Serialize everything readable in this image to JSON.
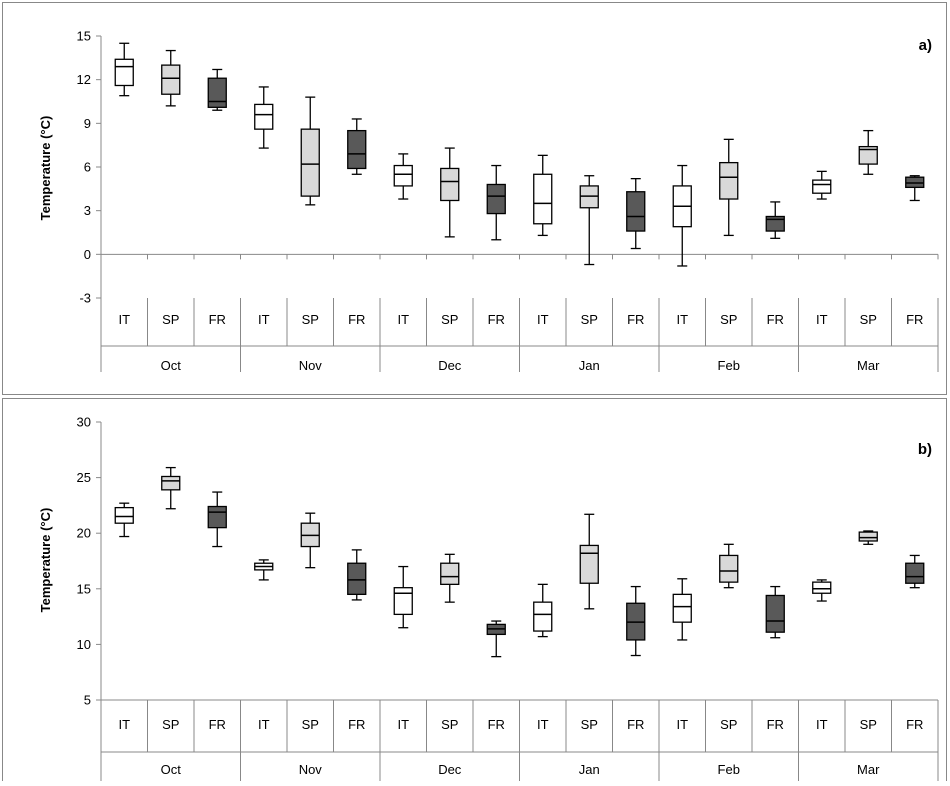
{
  "colors": {
    "IT": "#ffffff",
    "SP": "#d9d9d9",
    "FR": "#595959",
    "line": "#000000",
    "frame": "#888888",
    "axis": "#888888"
  },
  "chart_data": [
    {
      "type": "boxplot",
      "panel_label": "a)",
      "ylabel": "Temperature (°C)",
      "ylim": [
        -3,
        15
      ],
      "yticks": [
        "15",
        "12",
        "9",
        "6",
        "3",
        "0",
        "-3"
      ],
      "groups": [
        "Oct",
        "Nov",
        "Dec",
        "Jan",
        "Feb",
        "Mar"
      ],
      "subcategories": [
        "IT",
        "SP",
        "FR"
      ],
      "boxes": [
        {
          "group": "Oct",
          "sub": "IT",
          "min": 10.9,
          "q1": 11.6,
          "median": 12.9,
          "q3": 13.4,
          "max": 14.5
        },
        {
          "group": "Oct",
          "sub": "SP",
          "min": 10.2,
          "q1": 11.0,
          "median": 12.1,
          "q3": 13.0,
          "max": 14.0
        },
        {
          "group": "Oct",
          "sub": "FR",
          "min": 9.9,
          "q1": 10.1,
          "median": 10.5,
          "q3": 12.1,
          "max": 12.7
        },
        {
          "group": "Nov",
          "sub": "IT",
          "min": 7.3,
          "q1": 8.6,
          "median": 9.6,
          "q3": 10.3,
          "max": 11.5
        },
        {
          "group": "Nov",
          "sub": "SP",
          "min": 3.4,
          "q1": 4.0,
          "median": 6.2,
          "q3": 8.6,
          "max": 10.8
        },
        {
          "group": "Nov",
          "sub": "FR",
          "min": 5.5,
          "q1": 5.9,
          "median": 6.9,
          "q3": 8.5,
          "max": 9.3
        },
        {
          "group": "Dec",
          "sub": "IT",
          "min": 3.8,
          "q1": 4.7,
          "median": 5.5,
          "q3": 6.1,
          "max": 6.9
        },
        {
          "group": "Dec",
          "sub": "SP",
          "min": 1.2,
          "q1": 3.7,
          "median": 5.0,
          "q3": 5.9,
          "max": 7.3
        },
        {
          "group": "Dec",
          "sub": "FR",
          "min": 1.0,
          "q1": 2.8,
          "median": 4.0,
          "q3": 4.8,
          "max": 6.1
        },
        {
          "group": "Jan",
          "sub": "IT",
          "min": 1.3,
          "q1": 2.1,
          "median": 3.5,
          "q3": 5.5,
          "max": 6.8
        },
        {
          "group": "Jan",
          "sub": "SP",
          "min": -0.7,
          "q1": 3.2,
          "median": 4.0,
          "q3": 4.7,
          "max": 5.4
        },
        {
          "group": "Jan",
          "sub": "FR",
          "min": 0.4,
          "q1": 1.6,
          "median": 2.6,
          "q3": 4.3,
          "max": 5.2
        },
        {
          "group": "Feb",
          "sub": "IT",
          "min": -0.8,
          "q1": 1.9,
          "median": 3.3,
          "q3": 4.7,
          "max": 6.1
        },
        {
          "group": "Feb",
          "sub": "SP",
          "min": 1.3,
          "q1": 3.8,
          "median": 5.3,
          "q3": 6.3,
          "max": 7.9
        },
        {
          "group": "Feb",
          "sub": "FR",
          "min": 1.1,
          "q1": 1.6,
          "median": 2.4,
          "q3": 2.6,
          "max": 3.6
        },
        {
          "group": "Mar",
          "sub": "IT",
          "min": 3.8,
          "q1": 4.2,
          "median": 4.8,
          "q3": 5.1,
          "max": 5.7
        },
        {
          "group": "Mar",
          "sub": "SP",
          "min": 5.5,
          "q1": 6.2,
          "median": 7.2,
          "q3": 7.4,
          "max": 8.5
        },
        {
          "group": "Mar",
          "sub": "FR",
          "min": 3.7,
          "q1": 4.6,
          "median": 4.9,
          "q3": 5.3,
          "max": 5.4
        }
      ]
    },
    {
      "type": "boxplot",
      "panel_label": "b)",
      "ylabel": "Temperature (°C)",
      "ylim": [
        5,
        30
      ],
      "yticks": [
        "30",
        "25",
        "20",
        "15",
        "10",
        "5"
      ],
      "groups": [
        "Oct",
        "Nov",
        "Dec",
        "Jan",
        "Feb",
        "Mar"
      ],
      "subcategories": [
        "IT",
        "SP",
        "FR"
      ],
      "boxes": [
        {
          "group": "Oct",
          "sub": "IT",
          "min": 19.7,
          "q1": 20.9,
          "median": 21.5,
          "q3": 22.3,
          "max": 22.7
        },
        {
          "group": "Oct",
          "sub": "SP",
          "min": 22.2,
          "q1": 23.9,
          "median": 24.7,
          "q3": 25.1,
          "max": 25.9
        },
        {
          "group": "Oct",
          "sub": "FR",
          "min": 18.8,
          "q1": 20.5,
          "median": 21.9,
          "q3": 22.4,
          "max": 23.7
        },
        {
          "group": "Nov",
          "sub": "IT",
          "min": 15.8,
          "q1": 16.7,
          "median": 17.0,
          "q3": 17.3,
          "max": 17.6
        },
        {
          "group": "Nov",
          "sub": "SP",
          "min": 16.9,
          "q1": 18.8,
          "median": 19.8,
          "q3": 20.9,
          "max": 21.8
        },
        {
          "group": "Nov",
          "sub": "FR",
          "min": 14.0,
          "q1": 14.5,
          "median": 15.8,
          "q3": 17.3,
          "max": 18.5
        },
        {
          "group": "Dec",
          "sub": "IT",
          "min": 11.5,
          "q1": 12.7,
          "median": 14.6,
          "q3": 15.1,
          "max": 17.0
        },
        {
          "group": "Dec",
          "sub": "SP",
          "min": 13.8,
          "q1": 15.4,
          "median": 16.1,
          "q3": 17.3,
          "max": 18.1
        },
        {
          "group": "Dec",
          "sub": "FR",
          "min": 8.9,
          "q1": 10.9,
          "median": 11.4,
          "q3": 11.8,
          "max": 12.1
        },
        {
          "group": "Jan",
          "sub": "IT",
          "min": 10.7,
          "q1": 11.2,
          "median": 12.7,
          "q3": 13.8,
          "max": 15.4
        },
        {
          "group": "Jan",
          "sub": "SP",
          "min": 13.2,
          "q1": 15.5,
          "median": 18.2,
          "q3": 18.9,
          "max": 21.7
        },
        {
          "group": "Jan",
          "sub": "FR",
          "min": 9.0,
          "q1": 10.4,
          "median": 12.0,
          "q3": 13.7,
          "max": 15.2
        },
        {
          "group": "Feb",
          "sub": "IT",
          "min": 10.4,
          "q1": 12.0,
          "median": 13.4,
          "q3": 14.5,
          "max": 15.9
        },
        {
          "group": "Feb",
          "sub": "SP",
          "min": 15.1,
          "q1": 15.6,
          "median": 16.6,
          "q3": 18.0,
          "max": 19.0
        },
        {
          "group": "Feb",
          "sub": "FR",
          "min": 10.6,
          "q1": 11.1,
          "median": 12.1,
          "q3": 14.4,
          "max": 15.2
        },
        {
          "group": "Mar",
          "sub": "IT",
          "min": 13.9,
          "q1": 14.6,
          "median": 15.0,
          "q3": 15.6,
          "max": 15.8
        },
        {
          "group": "Mar",
          "sub": "SP",
          "min": 19.0,
          "q1": 19.3,
          "median": 19.6,
          "q3": 20.1,
          "max": 20.2
        },
        {
          "group": "Mar",
          "sub": "FR",
          "min": 15.1,
          "q1": 15.5,
          "median": 16.1,
          "q3": 17.3,
          "max": 18.0
        }
      ]
    }
  ]
}
